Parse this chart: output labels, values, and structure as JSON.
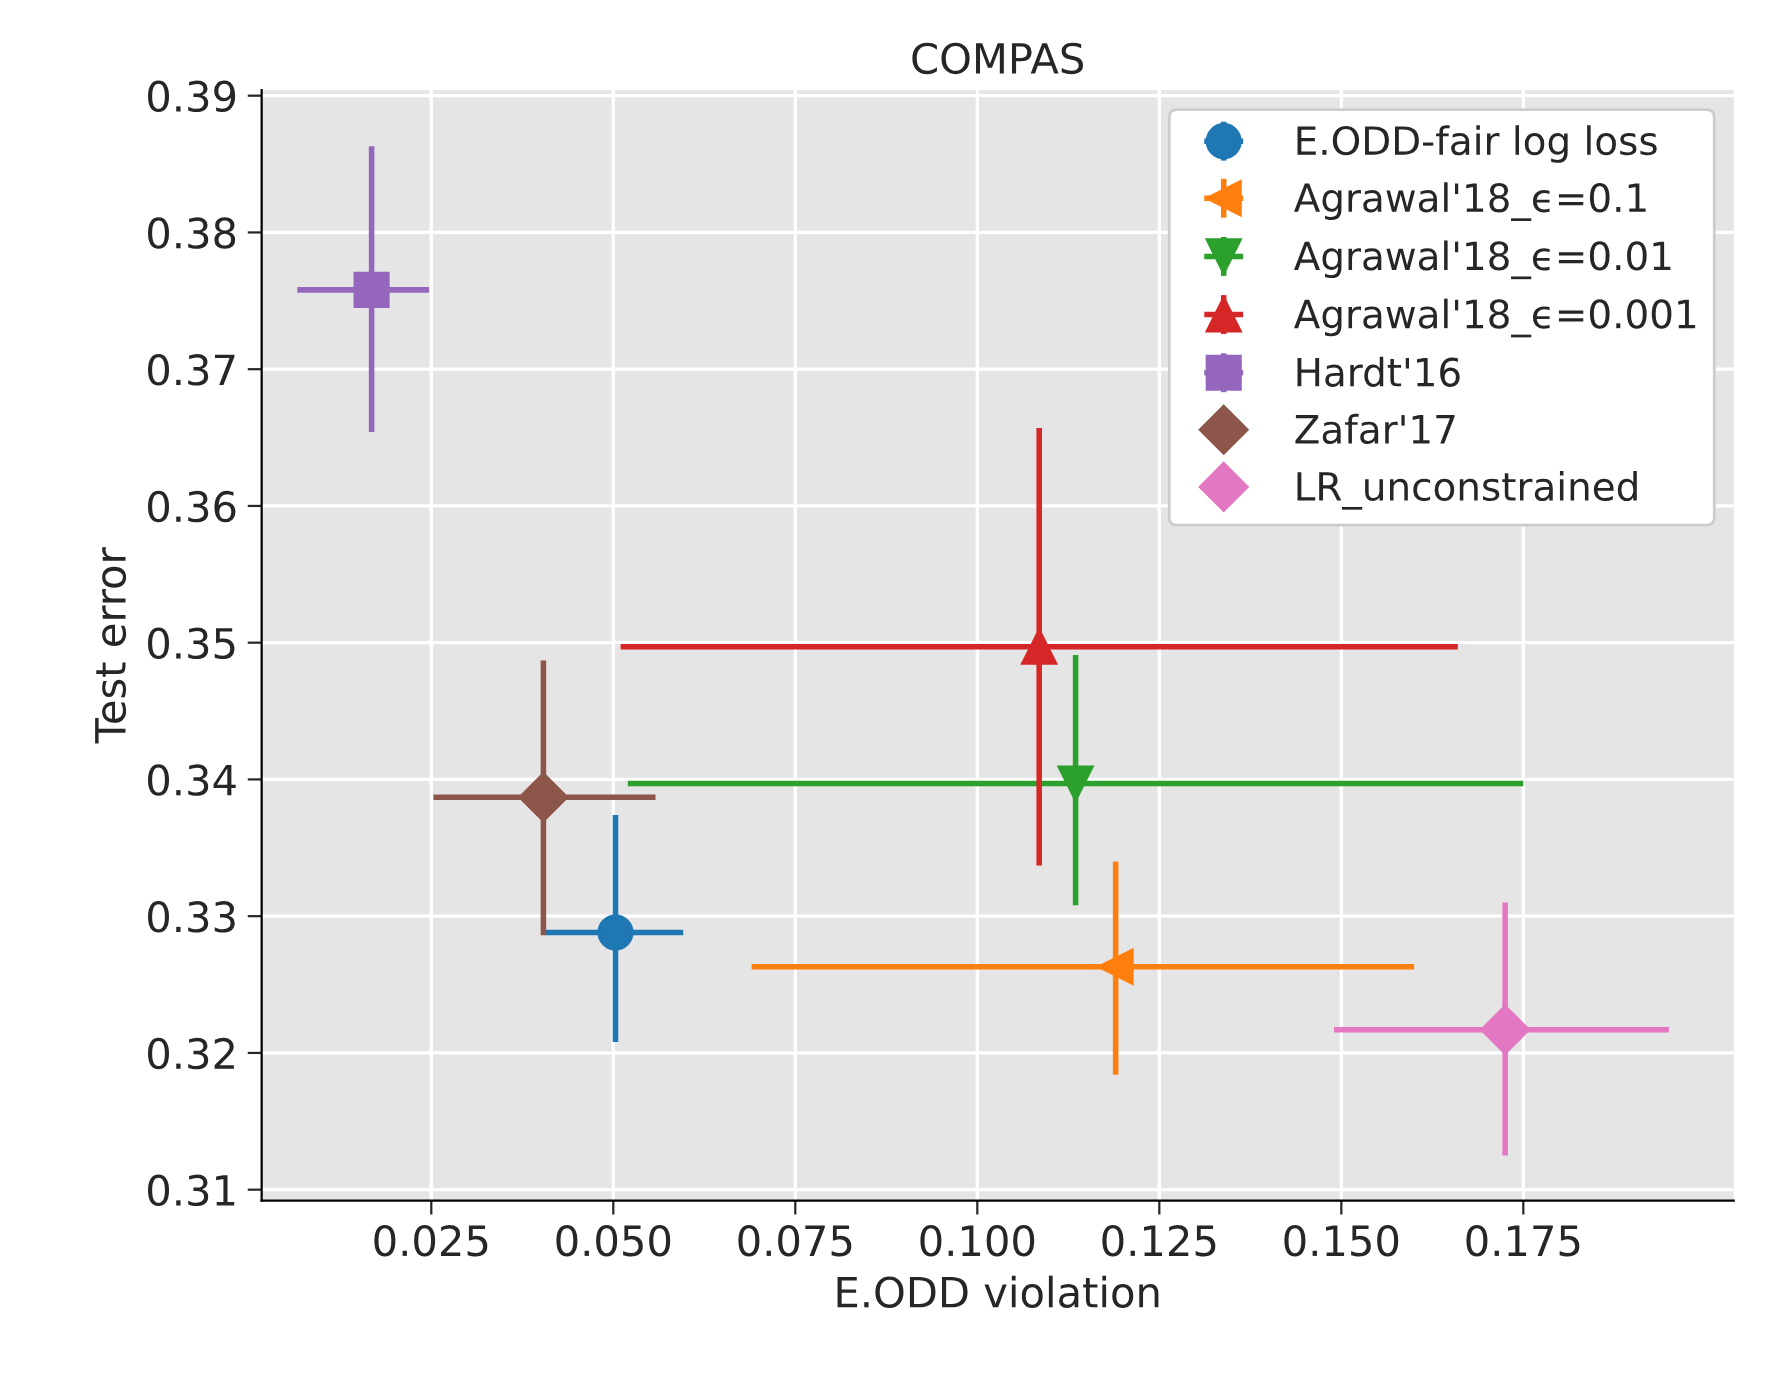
{
  "chart_data": {
    "type": "scatter",
    "title": "COMPAS",
    "xlabel": "E.ODD violation",
    "ylabel": "Test error",
    "xlim": [
      0.0017,
      0.2039
    ],
    "ylim": [
      0.3092,
      0.3904
    ],
    "xticks": [
      0.025,
      {
        "value": 0.05,
        "label": "0.050"
      },
      0.075,
      {
        "value": 0.1,
        "label": "0.100"
      },
      0.125,
      {
        "value": 0.15,
        "label": "0.150"
      },
      0.175
    ],
    "yticks": [
      0.31,
      0.32,
      0.33,
      0.34,
      0.35,
      0.36,
      0.37,
      0.38,
      0.39
    ],
    "grid": true,
    "legend": "top right",
    "series": [
      {
        "name": "E.ODD-fair log loss",
        "color": "#1f77b4",
        "marker": "circle",
        "x": [
          0.0503
        ],
        "values": [
          0.3288
        ],
        "xerrors": [
          [
            0.0407,
            0.0596
          ]
        ],
        "errors": [
          [
            0.3208,
            0.3374
          ]
        ]
      },
      {
        "name": "Agrawal'18_ϵ=0.1",
        "color": "#ff7f0e",
        "marker": "triangle-left",
        "x": [
          0.119
        ],
        "values": [
          0.3263
        ],
        "xerrors": [
          [
            0.069,
            0.16
          ]
        ],
        "errors": [
          [
            0.3184,
            0.334
          ]
        ]
      },
      {
        "name": "Agrawal'18_ϵ=0.01",
        "color": "#2ca02c",
        "marker": "triangle-down",
        "x": [
          0.1135
        ],
        "values": [
          0.3397
        ],
        "xerrors": [
          [
            0.052,
            0.175
          ]
        ],
        "errors": [
          [
            0.3308,
            0.3491
          ]
        ]
      },
      {
        "name": "Agrawal'18_ϵ=0.001",
        "color": "#d62728",
        "marker": "triangle",
        "x": [
          0.1085
        ],
        "values": [
          0.3497
        ],
        "xerrors": [
          [
            0.051,
            0.166
          ]
        ],
        "errors": [
          [
            0.3337,
            0.3657
          ]
        ]
      },
      {
        "name": "Hardt'16",
        "color": "#9467bd",
        "marker": "square",
        "x": [
          0.0168
        ],
        "values": [
          0.3758
        ],
        "xerrors": [
          [
            0.0066,
            0.0247
          ]
        ],
        "errors": [
          [
            0.3654,
            0.3863
          ]
        ]
      },
      {
        "name": "Zafar'17",
        "color": "#8c564b",
        "marker": "diamond",
        "x": [
          0.0404
        ],
        "values": [
          0.3387
        ],
        "xerrors": [
          [
            0.0253,
            0.0558
          ]
        ],
        "errors": [
          [
            0.3286,
            0.3487
          ]
        ]
      },
      {
        "name": "LR_unconstrained",
        "color": "#e377c2",
        "marker": "diamond",
        "x": [
          0.1725
        ],
        "values": [
          0.3217
        ],
        "xerrors": [
          [
            0.149,
            0.195
          ]
        ],
        "errors": [
          [
            0.3125,
            0.331
          ]
        ]
      }
    ]
  }
}
